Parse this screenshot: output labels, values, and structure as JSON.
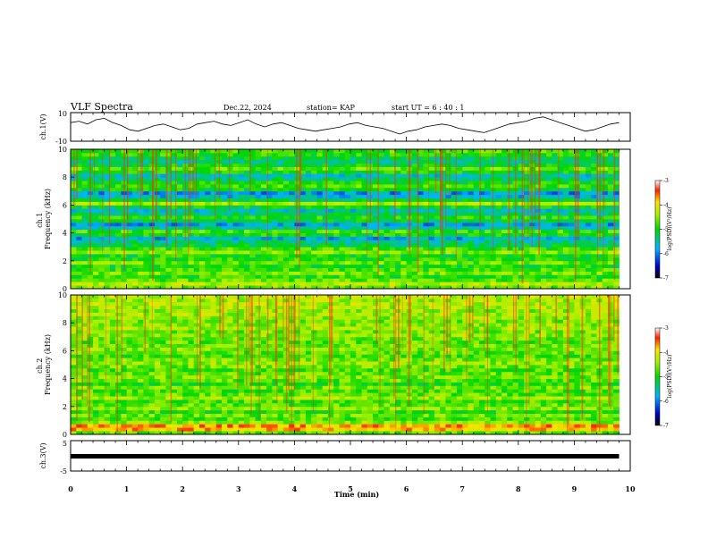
{
  "header": {
    "title": "VLF Spectra",
    "date": "Dec.22, 2024",
    "station": "station= KAP",
    "start": "start  UT  =   6  : 40 : 1"
  },
  "chart_data": [
    {
      "type": "line",
      "panel": "ch1-waveform",
      "ylabel": "ch.1(V)",
      "ylim": [
        -10,
        10
      ],
      "yticks": [
        "10",
        "-10"
      ],
      "xlim": [
        0,
        10
      ],
      "x_end": 9.8,
      "series": [
        {
          "values": [
            3,
            4,
            2,
            5,
            6,
            3,
            1,
            -2,
            -3,
            -1,
            1,
            2,
            0,
            -2,
            -1,
            2,
            3,
            4,
            2,
            1,
            3,
            5,
            2,
            0,
            2,
            3,
            1,
            -1,
            -2,
            -3,
            -2,
            -1,
            0,
            2,
            3,
            1,
            0,
            -1,
            -3,
            -5,
            -3,
            -2,
            0,
            1,
            2,
            1,
            -1,
            -2,
            -3,
            -4,
            -2,
            0,
            2,
            3,
            4,
            6,
            7,
            5,
            3,
            1,
            -1,
            -3,
            -2,
            0,
            2,
            3
          ]
        }
      ],
      "color": "#000000"
    },
    {
      "type": "heatmap",
      "panel": "ch1-spectrogram",
      "ylabel": "ch.1\nFrequency (kHz)",
      "ylim": [
        0,
        10
      ],
      "yticks": [
        "0",
        "2",
        "4",
        "6",
        "8",
        "10"
      ],
      "xlim": [
        0,
        10
      ],
      "x_end": 9.8,
      "colorbar": {
        "label": "log(PSD)(V²/Hz)",
        "range": [
          -7,
          -3
        ],
        "ticks": [
          "-3",
          "-4",
          "-5",
          "-6",
          "-7"
        ]
      },
      "band_profile": [
        -4.6,
        -4.3,
        -4.7,
        -4.9,
        -4.6,
        -4.8,
        -5.0,
        -4.6,
        -4.9,
        -5.0,
        -4.5,
        -4.8,
        -5.2,
        -5.4,
        -5.8,
        -5.0,
        -4.8,
        -5.5,
        -5.9,
        -5.2,
        -4.9,
        -5.3,
        -5.6,
        -5.1,
        -4.4,
        -5.2,
        -5.7,
        -5.9,
        -5.1,
        -4.8,
        -5.0,
        -5.3,
        -5.6,
        -5.0,
        -4.7,
        -5.1,
        -5.4,
        -5.2,
        -4.9,
        -4.8
      ]
    },
    {
      "type": "heatmap",
      "panel": "ch2-spectrogram",
      "ylabel": "ch.2\nFrequency (kHz)",
      "ylim": [
        0,
        10
      ],
      "yticks": [
        "0",
        "2",
        "4",
        "6",
        "8",
        "10"
      ],
      "xlim": [
        0,
        10
      ],
      "x_end": 9.8,
      "colorbar": {
        "label": "log(PSD)(V²/Hz)",
        "range": [
          -7,
          -3
        ],
        "ticks": [
          "-3",
          "-4",
          "-5",
          "-6",
          "-7"
        ]
      },
      "band_profile": [
        -4.7,
        -3.8,
        -3.7,
        -4.5,
        -4.8,
        -4.6,
        -4.9,
        -4.5,
        -4.7,
        -4.8,
        -4.4,
        -4.7,
        -4.8,
        -4.6,
        -4.9,
        -4.7,
        -4.6,
        -4.7,
        -4.8,
        -4.6,
        -4.5,
        -4.6,
        -4.8,
        -4.7,
        -4.5,
        -4.6,
        -4.7,
        -4.6,
        -4.5,
        -4.6,
        -4.4,
        -4.5,
        -4.6,
        -4.5,
        -4.4,
        -4.5,
        -4.4,
        -4.3,
        -4.4,
        -4.3
      ]
    },
    {
      "type": "line",
      "panel": "ch3-waveform",
      "ylabel": "ch.3(V)",
      "ylim": [
        -5,
        5
      ],
      "yticks": [
        "5",
        "-5"
      ],
      "xlim": [
        0,
        10
      ],
      "x_end": 9.8,
      "series": [
        {
          "values": [
            -1.5,
            -1.5
          ]
        }
      ],
      "xticks": [
        "0",
        "1",
        "2",
        "3",
        "4",
        "5",
        "6",
        "7",
        "8",
        "9",
        "10"
      ],
      "xlabel": "Time (min)",
      "color": "#000000"
    }
  ]
}
